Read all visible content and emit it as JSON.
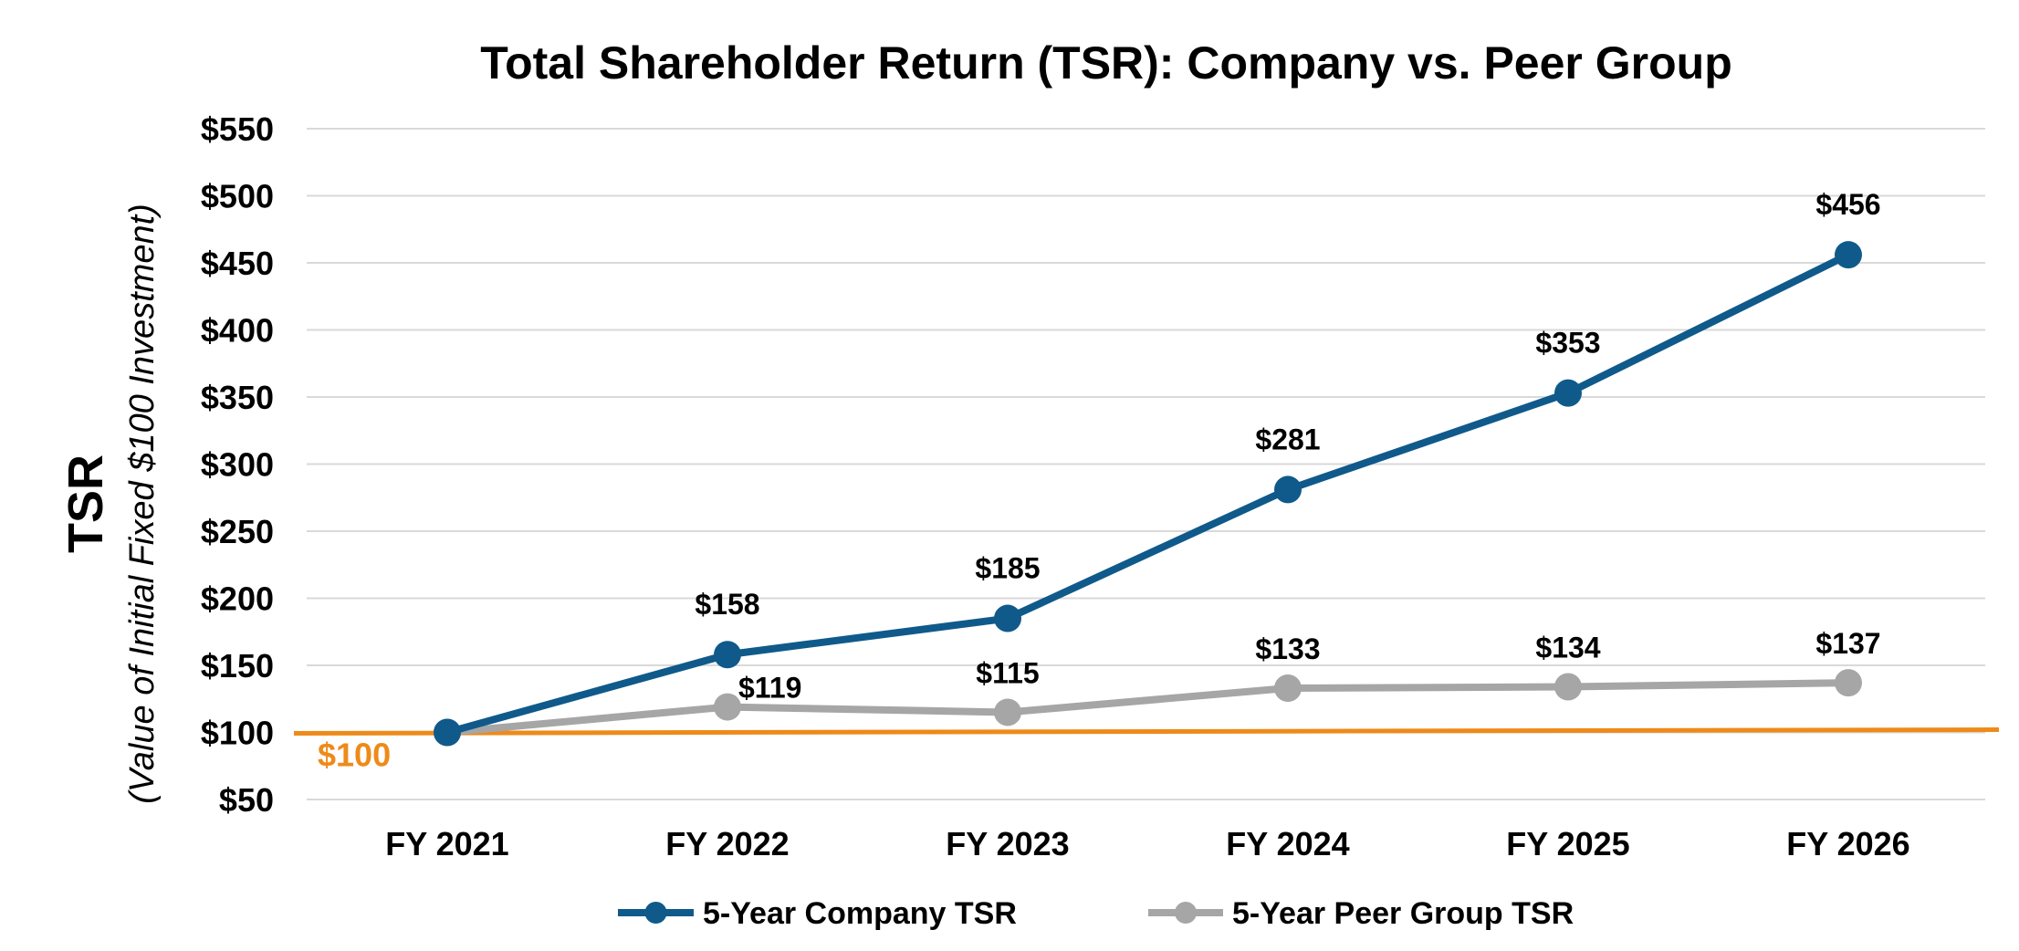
{
  "chart_data": {
    "type": "line",
    "title": "Total Shareholder Return (TSR): Company vs. Peer Group",
    "ylabel": "TSR",
    "ylabel_sub": "(Value of Initial Fixed $100 Investment)",
    "categories": [
      "FY 2021",
      "FY 2022",
      "FY 2023",
      "FY 2024",
      "FY 2025",
      "FY 2026"
    ],
    "ylim": [
      50,
      550
    ],
    "yticks": [
      50,
      100,
      150,
      200,
      250,
      300,
      350,
      400,
      450,
      500,
      550
    ],
    "ytick_labels": [
      "$50",
      "$100",
      "$150",
      "$200",
      "$250",
      "$300",
      "$350",
      "$400",
      "$450",
      "$500",
      "$550"
    ],
    "grid": true,
    "legend_position": "bottom",
    "series": [
      {
        "name": "5-Year Company TSR",
        "color": "#0f5a8a",
        "values": [
          100,
          158,
          185,
          281,
          353,
          456
        ],
        "labels": [
          "",
          "$158",
          "$185",
          "$281",
          "$353",
          "$456"
        ]
      },
      {
        "name": "5-Year Peer Group TSR",
        "color": "#a6a6a6",
        "values": [
          100,
          119,
          115,
          133,
          134,
          137
        ],
        "labels": [
          "",
          "$119",
          "$115",
          "$133",
          "$134",
          "$137"
        ]
      }
    ],
    "reference_line": {
      "value": 100,
      "label": "$100",
      "color": "#ee8a1a"
    }
  }
}
